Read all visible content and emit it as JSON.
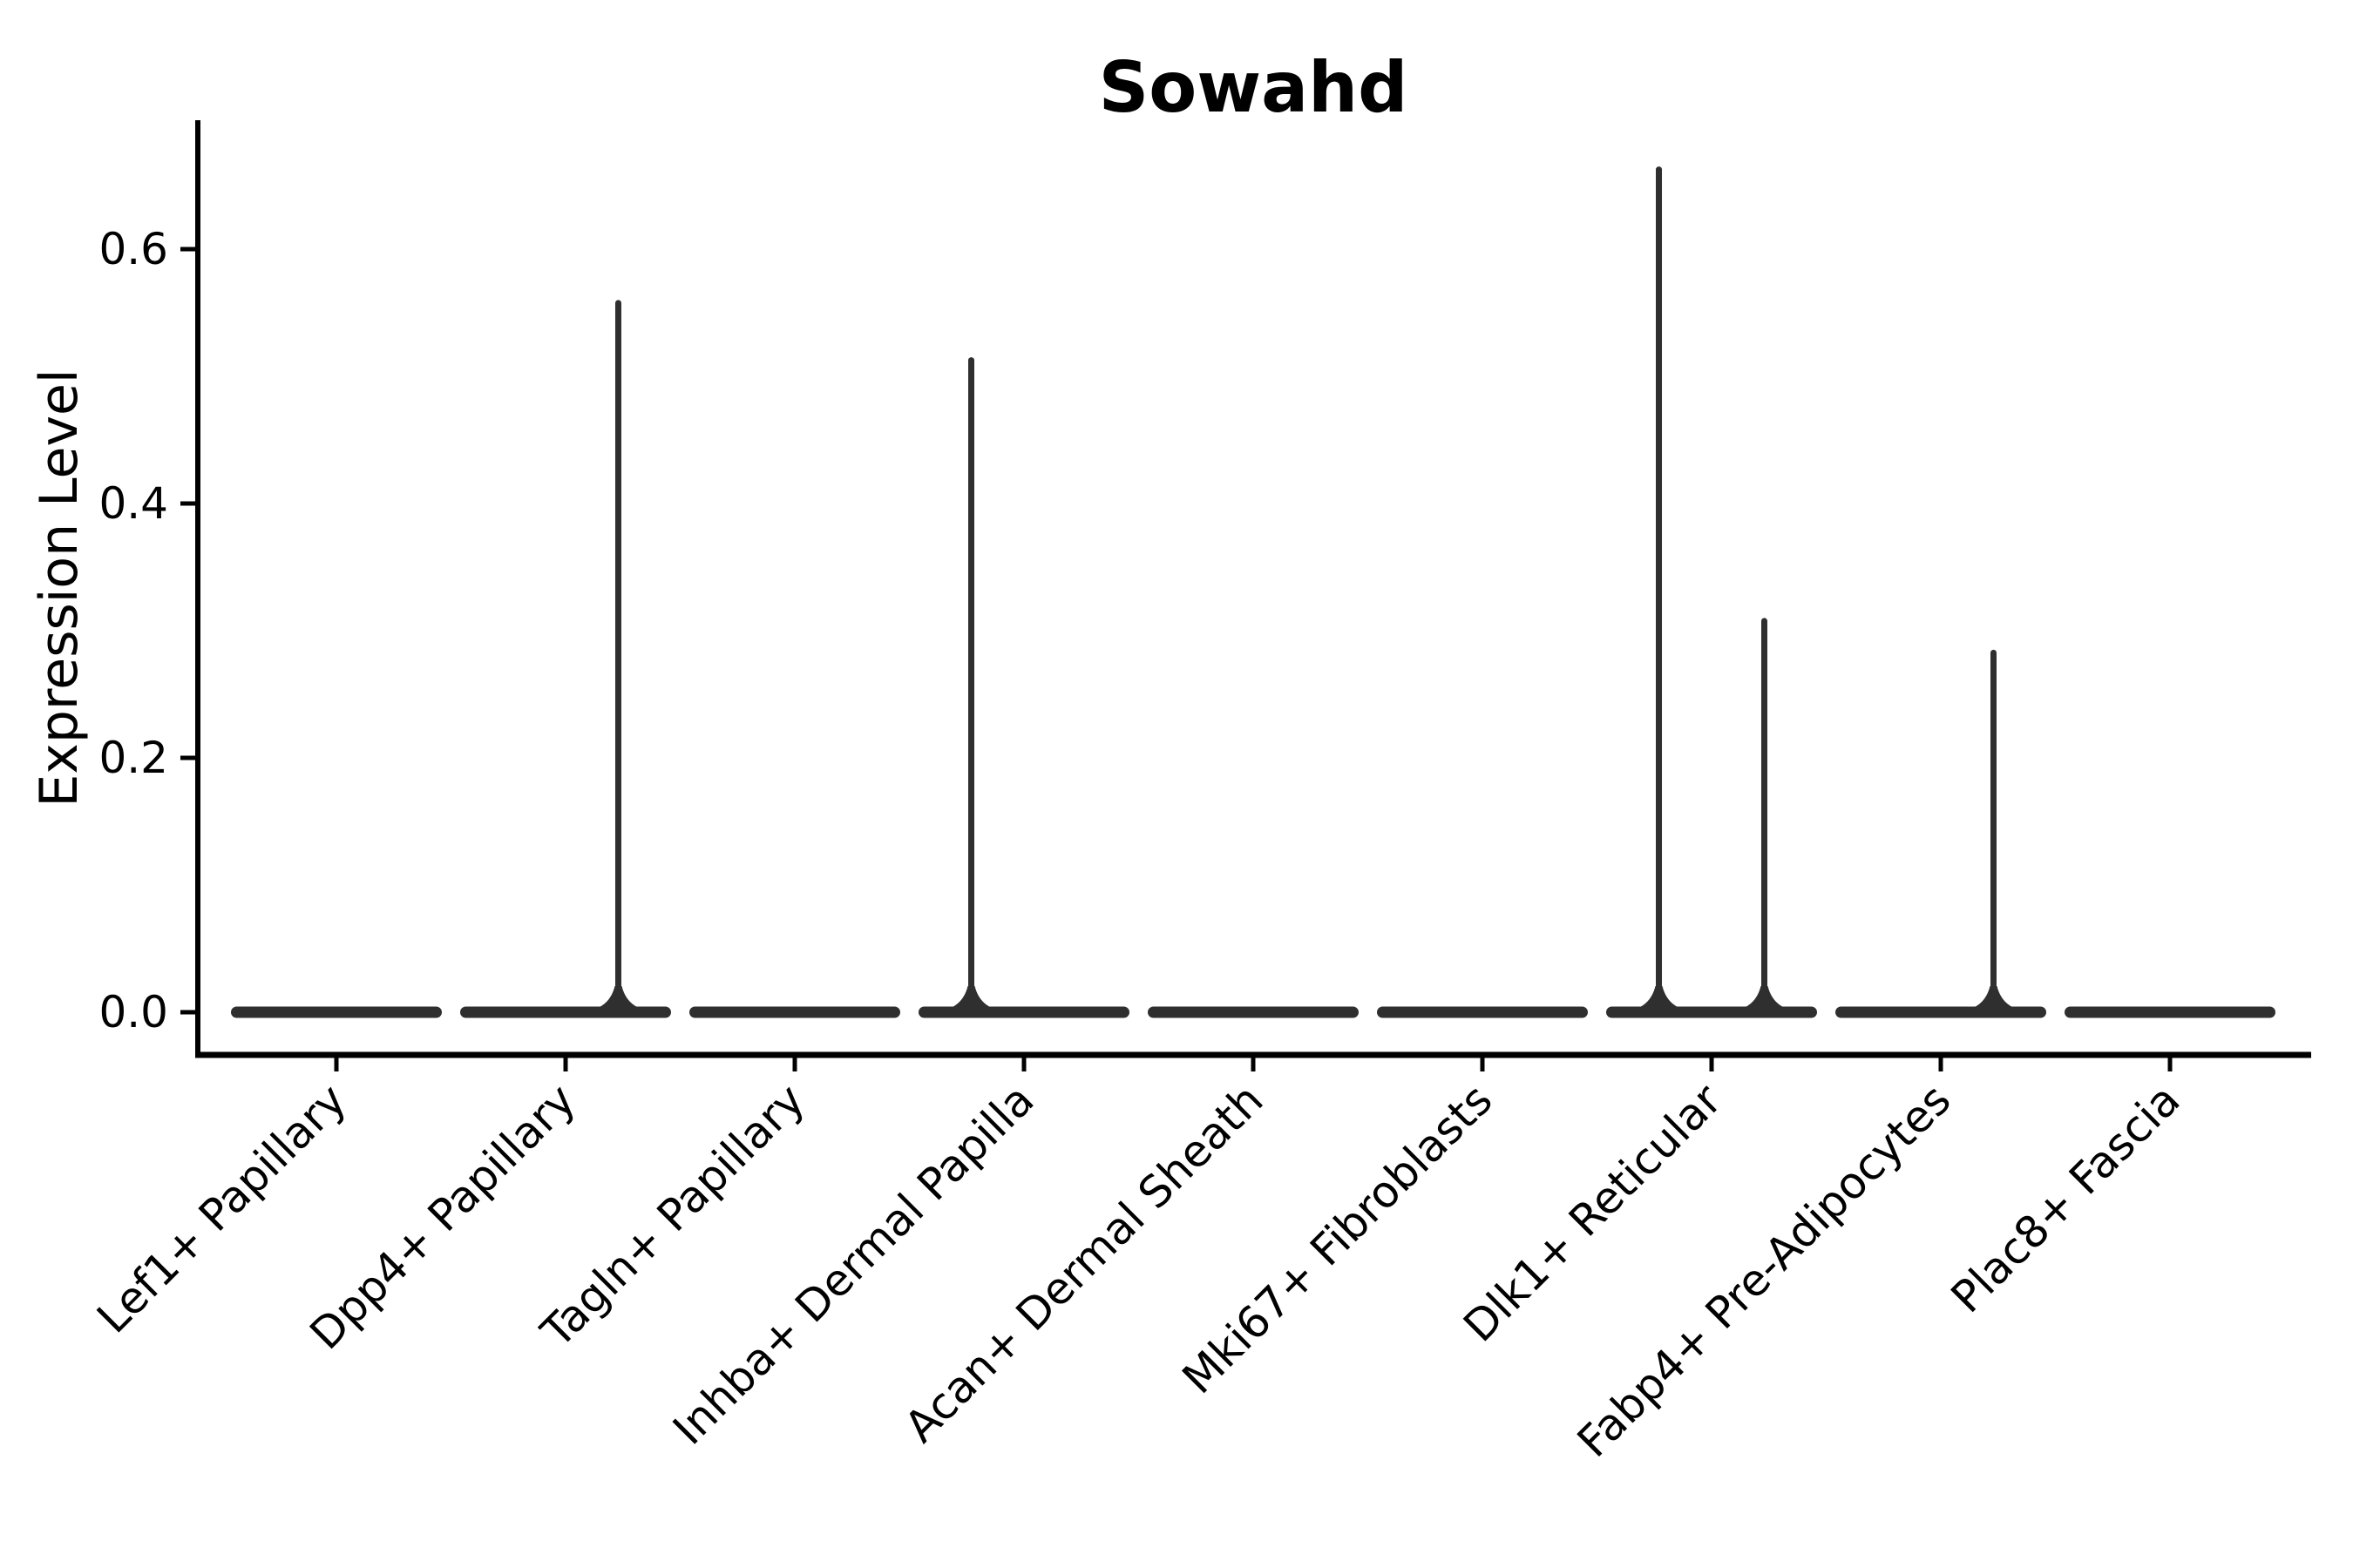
{
  "chart_data": {
    "type": "violin",
    "title": "Sowahd",
    "ylabel": "Expression Level",
    "xlabel": "",
    "legend": "none",
    "grid": false,
    "background_color": "#ffffff",
    "violin_color": "#2f2f2f",
    "axis_color": "#000000",
    "yticks": [
      0.0,
      0.2,
      0.4,
      0.6
    ],
    "ylim": [
      -0.032,
      0.7
    ],
    "x_tick_label_rotation_deg": 45,
    "categories": [
      "Lef1+ Papillary",
      "Dpp4+ Papillary",
      "Tagln+ Papillary",
      "Inhba+ Dermal Papilla",
      "Acan+ Dermal Sheath",
      "Mki67+ Fibroblasts",
      "Dlk1+ Reticular",
      "Fabp4+ Pre-Adipocytes",
      "Plac8+ Fascia"
    ],
    "series": [
      {
        "category": "Lef1+ Papillary",
        "base_value": 0.0,
        "max_expression": 0.0,
        "spikes": []
      },
      {
        "category": "Dpp4+ Papillary",
        "base_value": 0.0,
        "max_expression": 0.56,
        "spikes": [
          {
            "offset_frac": 0.23,
            "value": 0.56
          }
        ]
      },
      {
        "category": "Tagln+ Papillary",
        "base_value": 0.0,
        "max_expression": 0.0,
        "spikes": []
      },
      {
        "category": "Inhba+ Dermal Papilla",
        "base_value": 0.0,
        "max_expression": 0.515,
        "spikes": [
          {
            "offset_frac": -0.23,
            "value": 0.515
          }
        ]
      },
      {
        "category": "Acan+ Dermal Sheath",
        "base_value": 0.0,
        "max_expression": 0.0,
        "spikes": []
      },
      {
        "category": "Mki67+ Fibroblasts",
        "base_value": 0.0,
        "max_expression": 0.0,
        "spikes": []
      },
      {
        "category": "Dlk1+ Reticular",
        "base_value": 0.0,
        "max_expression": 0.665,
        "spikes": [
          {
            "offset_frac": -0.23,
            "value": 0.665
          },
          {
            "offset_frac": 0.23,
            "value": 0.31
          }
        ]
      },
      {
        "category": "Fabp4+ Pre-Adipocytes",
        "base_value": 0.0,
        "max_expression": 0.285,
        "spikes": [
          {
            "offset_frac": 0.23,
            "value": 0.285
          }
        ]
      },
      {
        "category": "Plac8+ Fascia",
        "base_value": 0.0,
        "max_expression": 0.0,
        "spikes": []
      }
    ]
  }
}
